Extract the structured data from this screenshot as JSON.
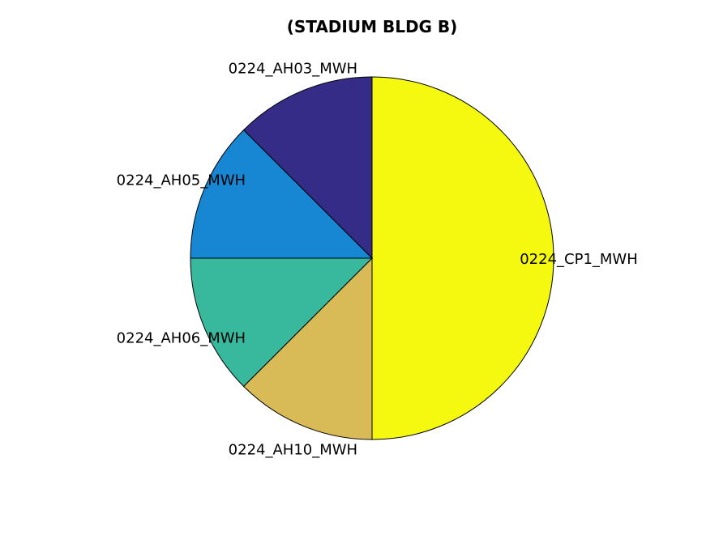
{
  "chart_data": {
    "type": "pie",
    "title": "(STADIUM BLDG B)",
    "slices": [
      {
        "label": "0224_CP1_MWH",
        "value": 50,
        "color": "#F5F90F"
      },
      {
        "label": "0224_AH10_MWH",
        "value": 12.5,
        "color": "#D8BB57"
      },
      {
        "label": "0224_AH06_MWH",
        "value": 12.5,
        "color": "#38B89D"
      },
      {
        "label": "0224_AH05_MWH",
        "value": 12.5,
        "color": "#1787D4"
      },
      {
        "label": "0224_AH03_MWH",
        "value": 12.5,
        "color": "#352C87"
      }
    ],
    "start": "top",
    "direction": "clockwise"
  }
}
